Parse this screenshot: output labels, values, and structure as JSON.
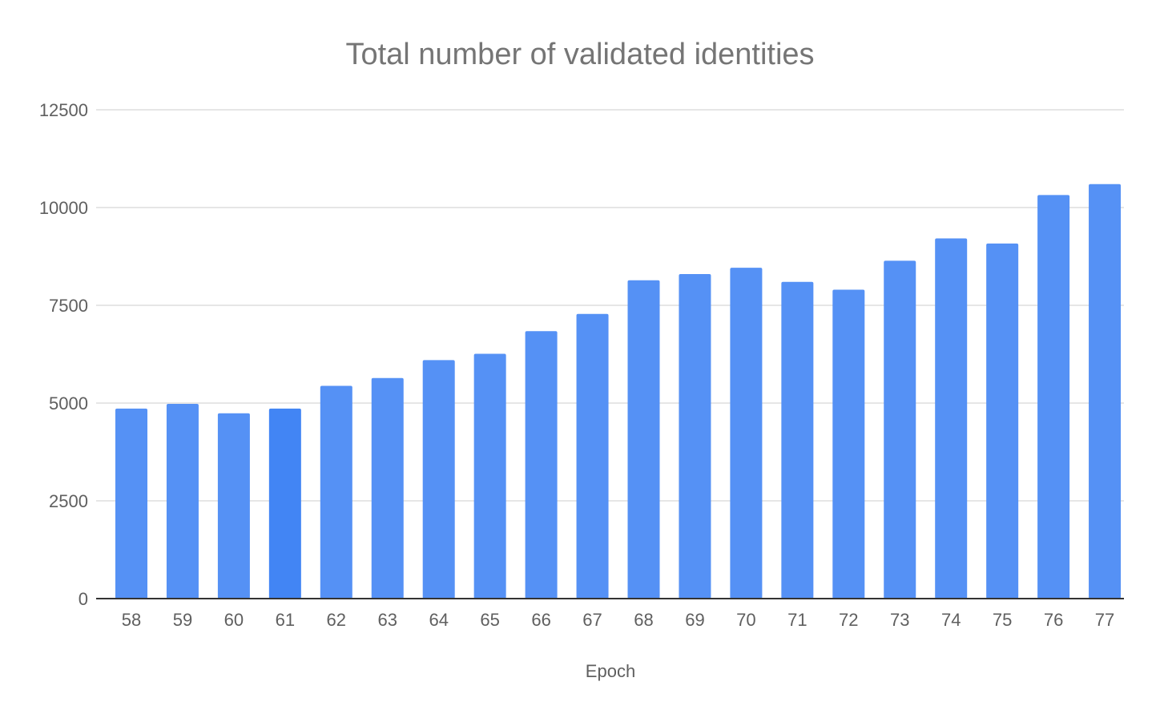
{
  "chart_data": {
    "type": "bar",
    "title": "Total number of validated identities",
    "xlabel": "Epoch",
    "ylabel": "",
    "ylim": [
      0,
      12500
    ],
    "yticks": [
      0,
      2500,
      5000,
      7500,
      10000,
      12500
    ],
    "ytick_labels": [
      "0",
      "2500",
      "5000",
      "7500",
      "10000",
      "12500"
    ],
    "grid": true,
    "legend": "none",
    "categories": [
      "58",
      "59",
      "60",
      "61",
      "62",
      "63",
      "64",
      "65",
      "66",
      "67",
      "68",
      "69",
      "70",
      "71",
      "72",
      "73",
      "74",
      "75",
      "76",
      "77"
    ],
    "values": [
      4860,
      4980,
      4740,
      4860,
      5440,
      5640,
      6100,
      6260,
      6840,
      7280,
      8140,
      8300,
      8460,
      8100,
      7900,
      8640,
      9210,
      9080,
      10320,
      10600
    ],
    "colors": {
      "bar": "#5591f5",
      "highlight_bar": "#4285f4",
      "gridline": "#e6e6e6",
      "baseline": "#333333",
      "title": "#757575",
      "text": "#5f5f5f"
    },
    "highlight_category": "61"
  }
}
